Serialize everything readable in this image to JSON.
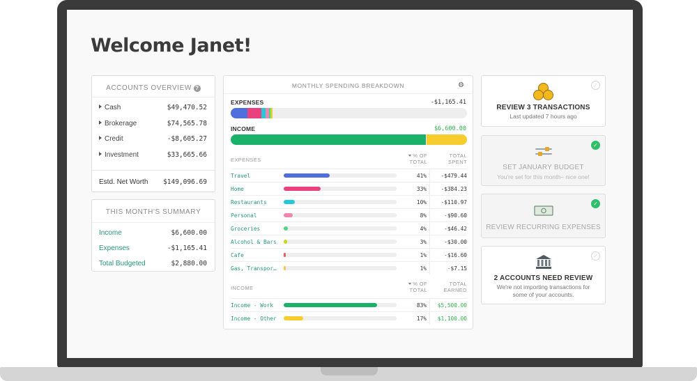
{
  "header": {
    "welcome": "Welcome Janet!"
  },
  "accounts_overview": {
    "title": "ACCOUNTS OVERVIEW",
    "help_icon": "question-circle-icon",
    "items": [
      {
        "label": "Cash",
        "value": "$49,470.52"
      },
      {
        "label": "Brokerage",
        "value": "$74,565.78"
      },
      {
        "label": "Credit",
        "value": "-$8,605.27"
      },
      {
        "label": "Investment",
        "value": "$33,665.66"
      }
    ],
    "net_worth": {
      "label": "Estd. Net Worth",
      "value": "$149,096.69"
    }
  },
  "month_summary": {
    "title": "THIS MONTH'S SUMMARY",
    "items": [
      {
        "label": "Income",
        "value": "$6,600.00"
      },
      {
        "label": "Expenses",
        "value": "-$1,165.41"
      },
      {
        "label": "Total Budgeted",
        "value": "$2,880.00"
      }
    ]
  },
  "spending": {
    "title": "MONTHLY SPENDING BREAKDOWN",
    "settings_icon": "gear-icon",
    "expenses_label": "EXPENSES",
    "expenses_total": "-$1,165.41",
    "income_label": "INCOME",
    "income_total": "$6,600.00",
    "expenses_header": {
      "category": "EXPENSES",
      "pct": "% OF TOTAL",
      "amount": "TOTAL SPENT"
    },
    "income_header": {
      "category": "INCOME",
      "pct": "% OF TOTAL",
      "amount": "TOTAL EARNED"
    },
    "expense_rows": [
      {
        "category": "Travel",
        "pct_label": "41%",
        "pct": 41,
        "amount": "-$479.44",
        "color": "#4f6fdc"
      },
      {
        "category": "Home",
        "pct_label": "33%",
        "pct": 33,
        "amount": "-$384.23",
        "color": "#e9417e"
      },
      {
        "category": "Restaurants",
        "pct_label": "10%",
        "pct": 10,
        "amount": "-$110.97",
        "color": "#22c9d6"
      },
      {
        "category": "Personal",
        "pct_label": "8%",
        "pct": 8,
        "amount": "-$90.60",
        "color": "#ee86b0"
      },
      {
        "category": "Groceries",
        "pct_label": "4%",
        "pct": 4,
        "amount": "-$46.42",
        "color": "#4cd686"
      },
      {
        "category": "Alcohol & Bars",
        "pct_label": "3%",
        "pct": 3,
        "amount": "-$30.00",
        "color": "#c9d62a"
      },
      {
        "category": "Cafe",
        "pct_label": "1%",
        "pct": 1,
        "amount": "-$16.60",
        "color": "#f05a5a"
      },
      {
        "category": "Gas, Transpor…",
        "pct_label": "1%",
        "pct": 1,
        "amount": "-$7.15",
        "color": "#f7c84a"
      }
    ],
    "income_rows": [
      {
        "category": "Income - Work",
        "pct_label": "83%",
        "pct": 83,
        "amount": "$5,500.00",
        "color": "#1ab26b"
      },
      {
        "category": "Income - Other",
        "pct_label": "17%",
        "pct": 17,
        "amount": "$1,100.00",
        "color": "#f6cd2d"
      }
    ]
  },
  "tasks": [
    {
      "icon": "coins-icon",
      "title": "REVIEW 3 TRANSACTIONS",
      "subtitle": "Last updated 7 hours ago",
      "done": false
    },
    {
      "icon": "budget-slider-icon",
      "title": "SET JANUARY BUDGET",
      "subtitle": "You're set for this month– nice one!",
      "done": true
    },
    {
      "icon": "cash-bill-icon",
      "title": "REVIEW RECURRING EXPENSES",
      "subtitle": "",
      "done": true
    },
    {
      "icon": "bank-icon",
      "title": "2 ACCOUNTS NEED REVIEW",
      "subtitle": "We're not importing transactions for some of your accounts.",
      "done": false
    }
  ]
}
